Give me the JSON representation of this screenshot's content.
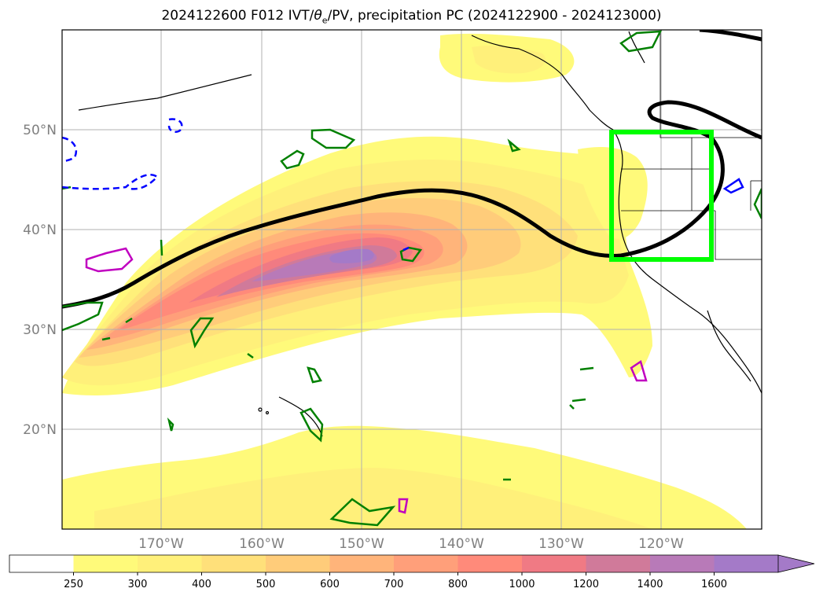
{
  "title": {
    "prefix": "2024122600 F012 IVT/",
    "theta": "θ",
    "theta_sub": "e",
    "suffix": "/PV, precipitation PC (2024122900 - 2024123000)"
  },
  "axes": {
    "lat_labels": [
      "50°N",
      "40°N",
      "30°N",
      "20°N"
    ],
    "lon_labels": [
      "170°W",
      "160°W",
      "150°W",
      "140°W",
      "130°W",
      "120°W"
    ]
  },
  "colorbar": {
    "levels": [
      "250",
      "300",
      "400",
      "500",
      "600",
      "700",
      "800",
      "1000",
      "1200",
      "1400",
      "1600"
    ],
    "colors": [
      "#ffffff",
      "#fffa7a",
      "#fff07a",
      "#ffe07a",
      "#ffcc7a",
      "#ffb47a",
      "#ff9f7a",
      "#ff8a7a",
      "#f07a84",
      "#d07a9a",
      "#b87ab8",
      "#a47ac8"
    ],
    "extend": "max"
  },
  "overlay_colors": {
    "ivt_shading": "#ffe87a",
    "theta_e_contour": "#000000",
    "pv_positive": "#008000",
    "pv_negative": "#0000ff",
    "pv_high": "#c000c0",
    "target_box": "#00ff00"
  }
}
